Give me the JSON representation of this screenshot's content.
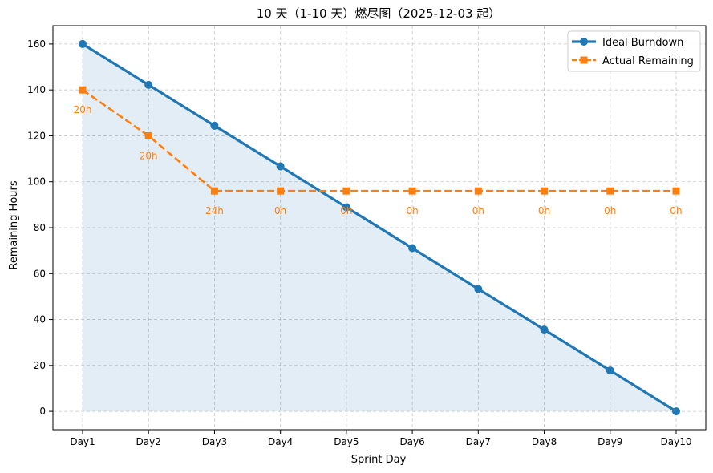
{
  "chart_data": {
    "type": "line",
    "title": "10 天（1-10 天）燃尽图（2025-12-03 起）",
    "xlabel": "Sprint Day",
    "ylabel": "Remaining Hours",
    "categories": [
      "Day1",
      "Day2",
      "Day3",
      "Day4",
      "Day5",
      "Day6",
      "Day7",
      "Day8",
      "Day9",
      "Day10"
    ],
    "ylim": [
      -8,
      168
    ],
    "yticks": [
      0,
      20,
      40,
      60,
      80,
      100,
      120,
      140,
      160
    ],
    "grid": true,
    "legend_position": "top-right",
    "series": [
      {
        "name": "Ideal Burndown",
        "color": "#1f77b4",
        "line_style": "solid",
        "marker": "circle",
        "fill_under": true,
        "values": [
          160,
          142.2,
          124.4,
          106.7,
          88.9,
          71.1,
          53.3,
          35.6,
          17.8,
          0
        ]
      },
      {
        "name": "Actual Remaining",
        "color": "#ff7f0e",
        "line_style": "dashed",
        "marker": "square",
        "values": [
          140,
          120,
          96,
          96,
          96,
          96,
          96,
          96,
          96,
          96
        ],
        "labels": [
          "20h",
          "20h",
          "24h",
          "0h",
          "0h",
          "0h",
          "0h",
          "0h",
          "0h",
          "0h"
        ]
      }
    ]
  }
}
